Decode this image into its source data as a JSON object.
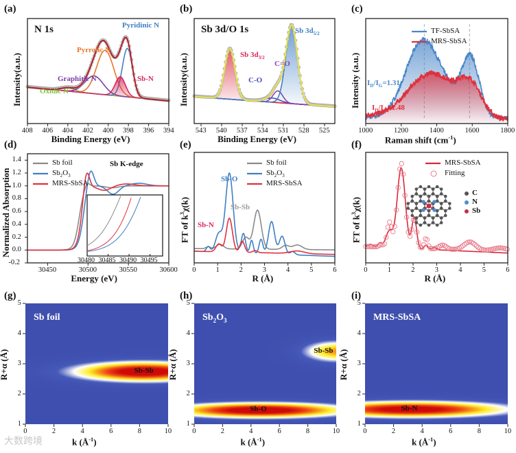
{
  "watermark": "大数跨境",
  "chart_data": [
    {
      "id": "a",
      "panel_label": "(a)",
      "type": "line",
      "title": "N 1s",
      "xlabel": "Binding Energy (eV)",
      "ylabel": "Intensity(a.u.)",
      "xlim": [
        408,
        394
      ],
      "ylim": [
        -0.2,
        1.1
      ],
      "xticks": [
        408,
        406,
        404,
        402,
        400,
        398,
        396,
        394
      ],
      "yticks": [],
      "raw_points": true,
      "series": [
        {
          "name": "Background",
          "color": "#b9c9a0",
          "baseline": [
            0.25,
            0.08
          ],
          "peaks": []
        },
        {
          "name": "Oxidic N",
          "color": "#7cc242",
          "baseline": [
            0.25,
            0.08
          ],
          "peaks": [
            [
              404.0,
              0.04,
              0.7
            ]
          ]
        },
        {
          "name": "Graphitic N",
          "color": "#7b3fa8",
          "baseline": [
            0.25,
            0.08
          ],
          "peaks": [
            [
              401.4,
              0.22,
              0.9
            ]
          ]
        },
        {
          "name": "Pyrrolic N",
          "color": "#e8762b",
          "baseline": [
            0.25,
            0.08
          ],
          "peaks": [
            [
              400.3,
              0.55,
              0.85
            ]
          ]
        },
        {
          "name": "Pyridinic N",
          "color": "#3f7fc4",
          "baseline": [
            0.25,
            0.08
          ],
          "peaks": [
            [
              398.1,
              0.6,
              0.5
            ]
          ]
        },
        {
          "name": "Sb-N",
          "color": "#d8285a",
          "fill": true,
          "baseline": [
            0.25,
            0.08
          ],
          "peaks": [
            [
              398.8,
              0.24,
              0.5
            ]
          ]
        },
        {
          "name": "Envelope",
          "color": "#b3202a",
          "envelope": true,
          "baseline": [
            0.25,
            0.08
          ],
          "peaks": [
            [
              404.0,
              0.04,
              0.7
            ],
            [
              401.4,
              0.22,
              0.9
            ],
            [
              400.3,
              0.55,
              0.85
            ],
            [
              398.1,
              0.6,
              0.5
            ],
            [
              398.8,
              0.24,
              0.5
            ]
          ]
        }
      ],
      "annotations": [
        {
          "text": "Pyridinic N",
          "color": "#3f7fc4"
        },
        {
          "text": "Pyrrolic N",
          "color": "#e8762b"
        },
        {
          "text": "Graphitic N",
          "color": "#7b3fa8"
        },
        {
          "text": "Oxidic N",
          "color": "#7cc242"
        },
        {
          "text": "Sb-N",
          "color": "#d8285a"
        }
      ]
    },
    {
      "id": "b",
      "panel_label": "(b)",
      "type": "line",
      "title": "Sb 3d/O 1s",
      "xlabel": "Binding Energy (eV)",
      "ylabel": "Intensity(a.u.)",
      "xlim": [
        544,
        523.5
      ],
      "ylim": [
        -0.1,
        1.15
      ],
      "xticks": [
        543,
        540,
        537,
        534,
        531,
        528,
        525
      ],
      "yticks": [],
      "raw_points": true,
      "series": [
        {
          "name": "Background",
          "color": "#d8283a",
          "baseline": [
            0.22,
            0.1
          ],
          "peaks": []
        },
        {
          "name": "Sb 3d_{3/2}",
          "color": "#d8283a",
          "fill": true,
          "baseline": [
            0.22,
            0.1
          ],
          "peaks": [
            [
              538.8,
              0.6,
              0.75
            ]
          ]
        },
        {
          "name": "C-O",
          "color": "#4a4ab8",
          "baseline": [
            0.22,
            0.1
          ],
          "peaks": [
            [
              532.6,
              0.05,
              1.1
            ]
          ]
        },
        {
          "name": "C=O",
          "color": "#8a3fb0",
          "baseline": [
            0.22,
            0.1
          ],
          "peaks": [
            [
              531.8,
              0.14,
              0.7
            ]
          ]
        },
        {
          "name": "Sb 3d_{5/2}",
          "color": "#3f7fc4",
          "fill": true,
          "baseline": [
            0.22,
            0.1
          ],
          "peaks": [
            [
              529.8,
              0.93,
              0.85
            ]
          ]
        },
        {
          "name": "Envelope",
          "color": "#e6e04a",
          "envelope": true,
          "baseline": [
            0.22,
            0.1
          ],
          "peaks": [
            [
              538.8,
              0.6,
              0.75
            ],
            [
              532.6,
              0.05,
              1.1
            ],
            [
              531.8,
              0.14,
              0.7
            ],
            [
              529.8,
              0.93,
              0.85
            ]
          ]
        }
      ],
      "annotations": [
        {
          "text": "Sb 3d_{5/2}",
          "color": "#3f7fc4"
        },
        {
          "text": "Sb 3d_{3/2}",
          "color": "#d8285a"
        },
        {
          "text": "C=O",
          "color": "#8a3fb0"
        },
        {
          "text": "C-O",
          "color": "#4a4ab8"
        }
      ]
    },
    {
      "id": "c",
      "panel_label": "(c)",
      "type": "line",
      "title": "",
      "xlabel": "Raman shift (cm^{-1})",
      "ylabel": "Intensity (a.u.)",
      "xlim": [
        1000,
        1800
      ],
      "ylim": [
        0,
        1
      ],
      "xticks": [
        1000,
        1200,
        1400,
        1600,
        1800
      ],
      "yticks": [],
      "reference_lines": [
        1330,
        1585
      ],
      "series": [
        {
          "name": "TF-SbSA",
          "color": "#4a86c8",
          "fill": true,
          "noise": 0.025,
          "baseline": [
            0.06,
            0.05
          ],
          "peaks": [
            [
              1320,
              0.72,
              95
            ],
            [
              1590,
              0.55,
              50
            ],
            [
              1470,
              0.12,
              80
            ]
          ]
        },
        {
          "name": "MRS-SbSA",
          "color": "#e0303c",
          "fill": true,
          "noise": 0.025,
          "baseline": [
            0.08,
            0.04
          ],
          "peaks": [
            [
              1330,
              0.34,
              110
            ],
            [
              1590,
              0.3,
              65
            ],
            [
              1460,
              0.16,
              90
            ]
          ]
        }
      ],
      "annotations": [
        {
          "text": "I_{D}/I_{G}=1.31",
          "color": "#4a86c8"
        },
        {
          "text": "I_{D}/I_{G}=1.48",
          "color": "#e0303c"
        }
      ]
    },
    {
      "id": "d",
      "panel_label": "(d)",
      "type": "line",
      "title": "Sb K-edge",
      "xlabel": "Energy (eV)",
      "ylabel": "Normalized Absorption",
      "xlim": [
        30425,
        30600
      ],
      "ylim": [
        -0.2,
        1.5
      ],
      "xticks": [
        30450,
        30500,
        30550,
        30600
      ],
      "yticks": [
        -0.2,
        0.0,
        0.2,
        0.4,
        0.6,
        0.8,
        1.0,
        1.2,
        1.4
      ],
      "ytick_labels": [
        "-0.2",
        "0.0",
        "0.2",
        "0.4",
        "0.6",
        "0.8",
        "1.0",
        "1.2",
        "1.4"
      ],
      "series": [
        {
          "name": "Sb  foil",
          "color": "#8a8a8a",
          "edge": [
            30489,
            3.2
          ],
          "peaks": [
            [
              30499,
              0.07,
              3
            ],
            [
              30530,
              -0.03,
              8
            ]
          ]
        },
        {
          "name": "Sb_{2}O_{3}",
          "color": "#3f7fc4",
          "edge": [
            30494,
            3.2
          ],
          "peaks": [
            [
              30503,
              0.28,
              4
            ],
            [
              30531,
              -0.13,
              7
            ],
            [
              30563,
              0.04,
              10
            ]
          ]
        },
        {
          "name": "MRS-SbSA",
          "color": "#e0303c",
          "edge": [
            30492,
            3.0
          ],
          "peaks": [
            [
              30498,
              0.3,
              3.5
            ],
            [
              30520,
              -0.07,
              8
            ],
            [
              30548,
              0.03,
              10
            ]
          ]
        }
      ],
      "inset": {
        "xlim": [
          30480,
          30498
        ],
        "xticks": [
          30480,
          30485,
          30490,
          30495
        ]
      }
    },
    {
      "id": "e",
      "panel_label": "(e)",
      "type": "line",
      "title": "",
      "xlabel": "R (Å)",
      "ylabel": "FT of k^{3}χ(k)",
      "xlim": [
        0,
        6
      ],
      "ylim": [
        -0.15,
        1.55
      ],
      "xticks": [
        0,
        1,
        2,
        3,
        4,
        5,
        6
      ],
      "yticks": [],
      "series": [
        {
          "name": "Sb  foil",
          "color": "#8a8a8a",
          "baseline": [
            0.07,
            0.05
          ],
          "peaks": [
            [
              2.7,
              0.6,
              0.16
            ],
            [
              2.2,
              0.18,
              0.14
            ],
            [
              1.1,
              0.07,
              0.15
            ],
            [
              3.9,
              0.06,
              0.15
            ],
            [
              4.4,
              0.07,
              0.2
            ],
            [
              0.6,
              0.03,
              0.1
            ]
          ]
        },
        {
          "name": "Sb_{2}O_{3}",
          "color": "#3f7fc4",
          "baseline": [
            0.03,
            -0.05
          ],
          "peaks": [
            [
              1.5,
              1.22,
              0.16
            ],
            [
              1.05,
              0.28,
              0.14
            ],
            [
              2.1,
              0.3,
              0.09
            ],
            [
              2.45,
              0.2,
              0.07
            ],
            [
              2.85,
              0.22,
              0.08
            ],
            [
              3.3,
              0.5,
              0.13
            ],
            [
              3.75,
              0.28,
              0.12
            ],
            [
              0.6,
              0.08,
              0.08
            ],
            [
              4.2,
              0.05,
              0.1
            ]
          ]
        },
        {
          "name": "MRS-SbSA",
          "color": "#e0303c",
          "baseline": [
            0.03,
            -0.02
          ],
          "peaks": [
            [
              1.5,
              0.52,
              0.13
            ],
            [
              1.05,
              0.12,
              0.12
            ],
            [
              2.05,
              0.17,
              0.1
            ],
            [
              2.6,
              0.03,
              0.1
            ],
            [
              4.4,
              0.04,
              0.3
            ]
          ]
        }
      ],
      "annotations": [
        {
          "text": "Sb-O",
          "color": "#3f7fc4"
        },
        {
          "text": "Sb-Sb",
          "color": "#9a9a9a"
        },
        {
          "text": "Sb-N",
          "color": "#d8285a"
        }
      ]
    },
    {
      "id": "f",
      "panel_label": "(f)",
      "type": "line",
      "title": "",
      "xlabel": "R (Å)",
      "ylabel": "FT of k^{3}χ(k)",
      "xlim": [
        0,
        6
      ],
      "ylim": [
        -0.1,
        1.25
      ],
      "xticks": [
        0,
        1,
        2,
        3,
        4,
        5,
        6
      ],
      "yticks": [],
      "series": [
        {
          "name": "MRS-SbSA",
          "color": "#d8283a",
          "baseline": [
            0.1,
            0.02
          ],
          "peaks": [
            [
              1.5,
              0.98,
              0.17
            ],
            [
              2.05,
              0.38,
              0.1
            ],
            [
              1.0,
              0.2,
              0.15
            ],
            [
              0.6,
              0.05,
              0.08
            ],
            [
              2.55,
              0.05,
              0.08
            ],
            [
              0.2,
              0.03,
              0.1
            ],
            [
              2.9,
              0.03,
              0.08
            ]
          ]
        },
        {
          "name": "Fitting",
          "color": "#e87a8a",
          "markers": "circle",
          "baseline": [
            0.1,
            0.04
          ],
          "peaks": [
            [
              1.5,
              1.03,
              0.16
            ],
            [
              2.05,
              0.36,
              0.1
            ],
            [
              1.0,
              0.3,
              0.1
            ],
            [
              0.65,
              0.03,
              0.08
            ],
            [
              2.55,
              0.13,
              0.07
            ],
            [
              3.25,
              0.05,
              0.15
            ],
            [
              4.4,
              0.1,
              0.25
            ],
            [
              5.7,
              0.04,
              0.3
            ]
          ]
        }
      ],
      "structure_legend": [
        {
          "label": "C",
          "color": "#555555"
        },
        {
          "label": "N",
          "color": "#4a8ed0"
        },
        {
          "label": "Sb",
          "color": "#c0304a"
        }
      ]
    },
    {
      "id": "g",
      "panel_label": "(g)",
      "type": "heatmap",
      "title": "Sb  foil",
      "xlabel": "k (Å^{-1})",
      "ylabel": "R+α (Å)",
      "xlim": [
        0,
        10
      ],
      "ylim": [
        1,
        5
      ],
      "xticks": [
        0,
        2,
        4,
        6,
        8,
        10
      ],
      "yticks": [
        1,
        2,
        3,
        4,
        5
      ],
      "blobs": [
        {
          "k": 8.3,
          "R": 2.75,
          "sk": 3.3,
          "sR": 0.22,
          "amp": 1.0,
          "label": "Sb-Sb"
        }
      ]
    },
    {
      "id": "h",
      "panel_label": "(h)",
      "type": "heatmap",
      "title": "Sb_{2}O_{3}",
      "xlabel": "k (Å^{-1})",
      "ylabel": "R+α (Å)",
      "xlim": [
        0,
        10
      ],
      "ylim": [
        1,
        5
      ],
      "xticks": [
        0,
        2,
        4,
        6,
        8,
        10
      ],
      "yticks": [
        1,
        2,
        3,
        4,
        5
      ],
      "blobs": [
        {
          "k": 4.6,
          "R": 1.47,
          "sk": 4.2,
          "sR": 0.17,
          "amp": 1.0,
          "label": "Sb-O"
        },
        {
          "k": 10.0,
          "R": 3.42,
          "sk": 1.6,
          "sR": 0.24,
          "amp": 0.62,
          "label": "Sb-Sb"
        }
      ]
    },
    {
      "id": "i",
      "panel_label": "(i)",
      "type": "heatmap",
      "title": "MRS-SbSA",
      "xlabel": "k (Å^{-1})",
      "ylabel": "R+α (Å)",
      "xlim": [
        0,
        10
      ],
      "ylim": [
        1,
        5
      ],
      "xticks": [
        0,
        2,
        4,
        6,
        8,
        10
      ],
      "yticks": [
        1,
        2,
        3,
        4,
        5
      ],
      "blobs": [
        {
          "k": 3.2,
          "R": 1.5,
          "sk": 4.6,
          "sR": 0.18,
          "amp": 0.97,
          "label": "Sb-N"
        }
      ]
    }
  ]
}
